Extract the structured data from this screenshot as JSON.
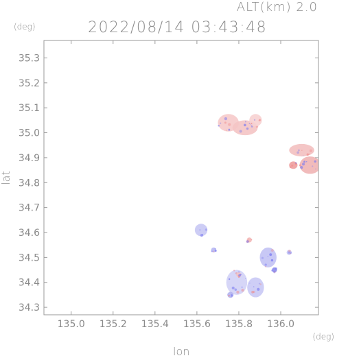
{
  "header": {
    "altitude": "ALT(km) 2.0",
    "timestamp": "2022/08/14 03:43:48"
  },
  "axes": {
    "y_unit": "(deg)",
    "x_unit": "(deg)",
    "x_label": "lon",
    "y_label": "lat",
    "x_ticks": [
      "135.0",
      "135.2",
      "135.4",
      "135.6",
      "135.8",
      "136.0"
    ],
    "y_ticks": [
      "34.3",
      "34.4",
      "34.5",
      "34.6",
      "34.7",
      "34.8",
      "34.9",
      "35.0",
      "35.1",
      "35.2",
      "35.3"
    ]
  },
  "map": {
    "lon_range": [
      134.87,
      136.18
    ],
    "lat_range": [
      34.27,
      35.37
    ],
    "colors": {
      "approaching": "#7b7bf0",
      "receding": "#f08a8a",
      "frame": "#9a9a9a"
    },
    "echoes": [
      {
        "name": "north-cluster",
        "lon": 135.75,
        "lat": 35.04,
        "rlon": 0.05,
        "rlat": 0.035,
        "color": "#f6caca"
      },
      {
        "name": "north-cluster-2",
        "lon": 135.83,
        "lat": 35.02,
        "rlon": 0.06,
        "rlat": 0.03,
        "color": "#f4c4c4"
      },
      {
        "name": "north-cluster-3",
        "lon": 135.88,
        "lat": 35.05,
        "rlon": 0.03,
        "rlat": 0.025,
        "color": "#f7d2d2"
      },
      {
        "name": "east-cluster",
        "lon": 136.1,
        "lat": 34.93,
        "rlon": 0.06,
        "rlat": 0.025,
        "color": "#f3c0c0"
      },
      {
        "name": "east-cluster-2",
        "lon": 136.14,
        "lat": 34.87,
        "rlon": 0.05,
        "rlat": 0.035,
        "color": "#f0b4b4"
      },
      {
        "name": "east-cluster-3",
        "lon": 136.06,
        "lat": 34.87,
        "rlon": 0.02,
        "rlat": 0.015,
        "color": "#ee9f9f"
      },
      {
        "name": "mid-cluster",
        "lon": 135.62,
        "lat": 34.61,
        "rlon": 0.03,
        "rlat": 0.025,
        "color": "#c8c8f4"
      },
      {
        "name": "mid-cluster-2",
        "lon": 135.68,
        "lat": 34.53,
        "rlon": 0.012,
        "rlat": 0.01,
        "color": "#b7b7f2"
      },
      {
        "name": "south-cluster",
        "lon": 135.79,
        "lat": 34.4,
        "rlon": 0.05,
        "rlat": 0.05,
        "color": "#d2d2f6"
      },
      {
        "name": "south-cluster-2",
        "lon": 135.88,
        "lat": 34.38,
        "rlon": 0.04,
        "rlat": 0.04,
        "color": "#c9c9f5"
      },
      {
        "name": "south-cluster-3",
        "lon": 135.94,
        "lat": 34.5,
        "rlon": 0.04,
        "rlat": 0.04,
        "color": "#c2c2f4"
      },
      {
        "name": "south-cluster-4",
        "lon": 135.76,
        "lat": 34.35,
        "rlon": 0.015,
        "rlat": 0.012,
        "color": "#b2b2f0"
      },
      {
        "name": "south-cluster-5",
        "lon": 135.97,
        "lat": 34.45,
        "rlon": 0.012,
        "rlat": 0.01,
        "color": "#8c8cec"
      },
      {
        "name": "south-cluster-6",
        "lon": 136.04,
        "lat": 34.52,
        "rlon": 0.012,
        "rlat": 0.01,
        "color": "#c5c5f4"
      },
      {
        "name": "south-cluster-7",
        "lon": 135.85,
        "lat": 34.57,
        "rlon": 0.012,
        "rlat": 0.01,
        "color": "#f2b7b7"
      },
      {
        "name": "south-cluster-8",
        "lon": 135.8,
        "lat": 34.43,
        "rlon": 0.012,
        "rlat": 0.01,
        "color": "#f3c4c4"
      }
    ]
  }
}
